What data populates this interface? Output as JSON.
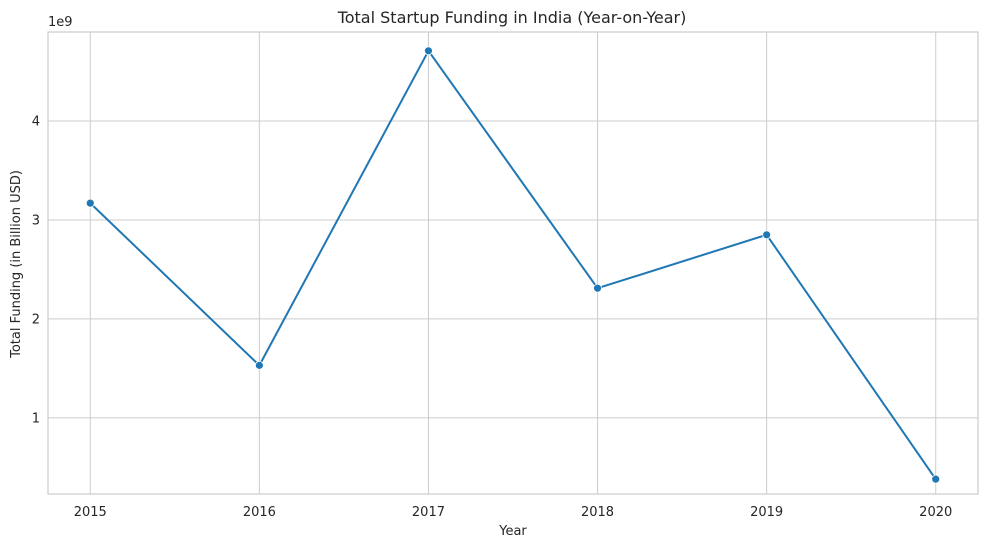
{
  "chart_data": {
    "type": "line",
    "title": "Total Startup Funding in India (Year-on-Year)",
    "xlabel": "Year",
    "ylabel": "Total Funding (in Billion USD)",
    "y_offset_label": "1e9",
    "x": [
      2015,
      2016,
      2017,
      2018,
      2019,
      2020
    ],
    "x_tick_labels": [
      "2015",
      "2016",
      "2017",
      "2018",
      "2019",
      "2020"
    ],
    "series": [
      {
        "values": [
          3170000000,
          1530000000,
          4710000000,
          2310000000,
          2850000000,
          380000000
        ]
      }
    ],
    "y_ticks": [
      1000000000,
      2000000000,
      3000000000,
      4000000000
    ],
    "y_tick_labels": [
      "1",
      "2",
      "3",
      "4"
    ],
    "xlim": [
      2014.75,
      2020.25
    ],
    "ylim": [
      230000000,
      4900000000
    ],
    "grid": true,
    "colors": {
      "line": "#1f77b4",
      "marker": "#1f77b4",
      "grid": "#cccccc",
      "spine": "#cccccc"
    }
  }
}
